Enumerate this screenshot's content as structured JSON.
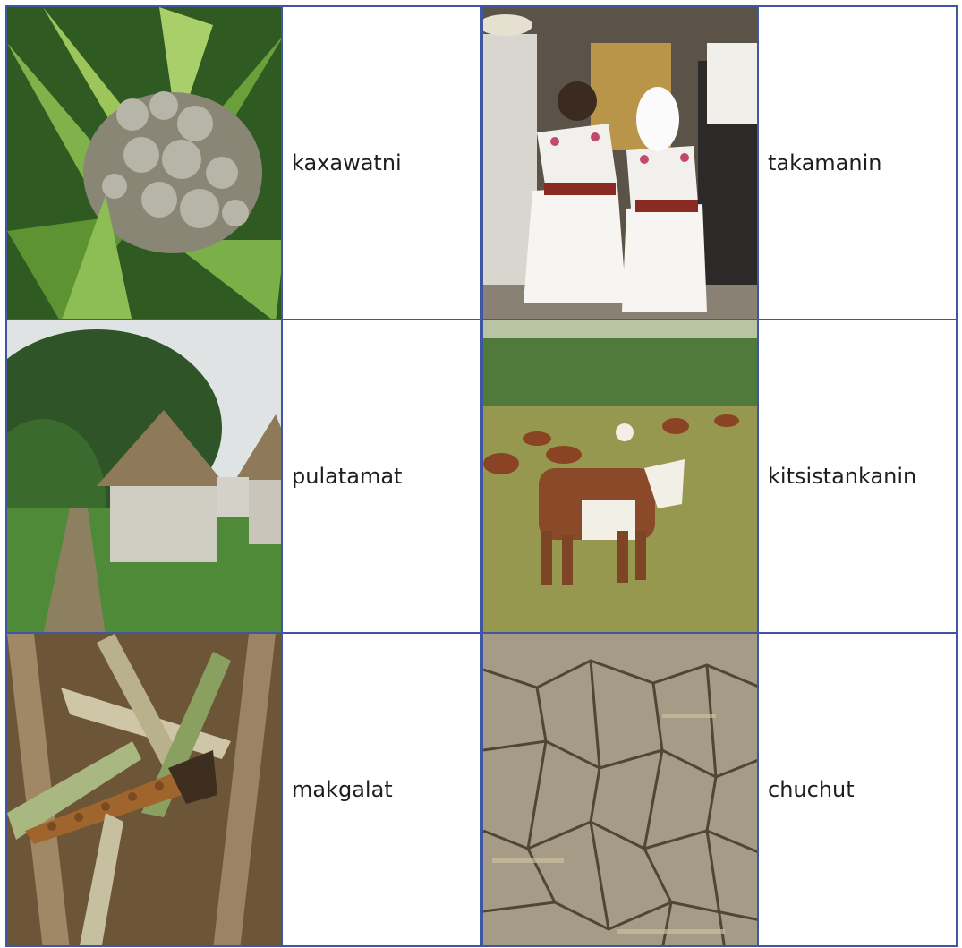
{
  "items": [
    {
      "label": "kaxawatni"
    },
    {
      "label": "takamanin"
    },
    {
      "label": "pulatamat"
    },
    {
      "label": "kitsistankanin"
    },
    {
      "label": "makgalat"
    },
    {
      "label": "chuchut"
    }
  ]
}
